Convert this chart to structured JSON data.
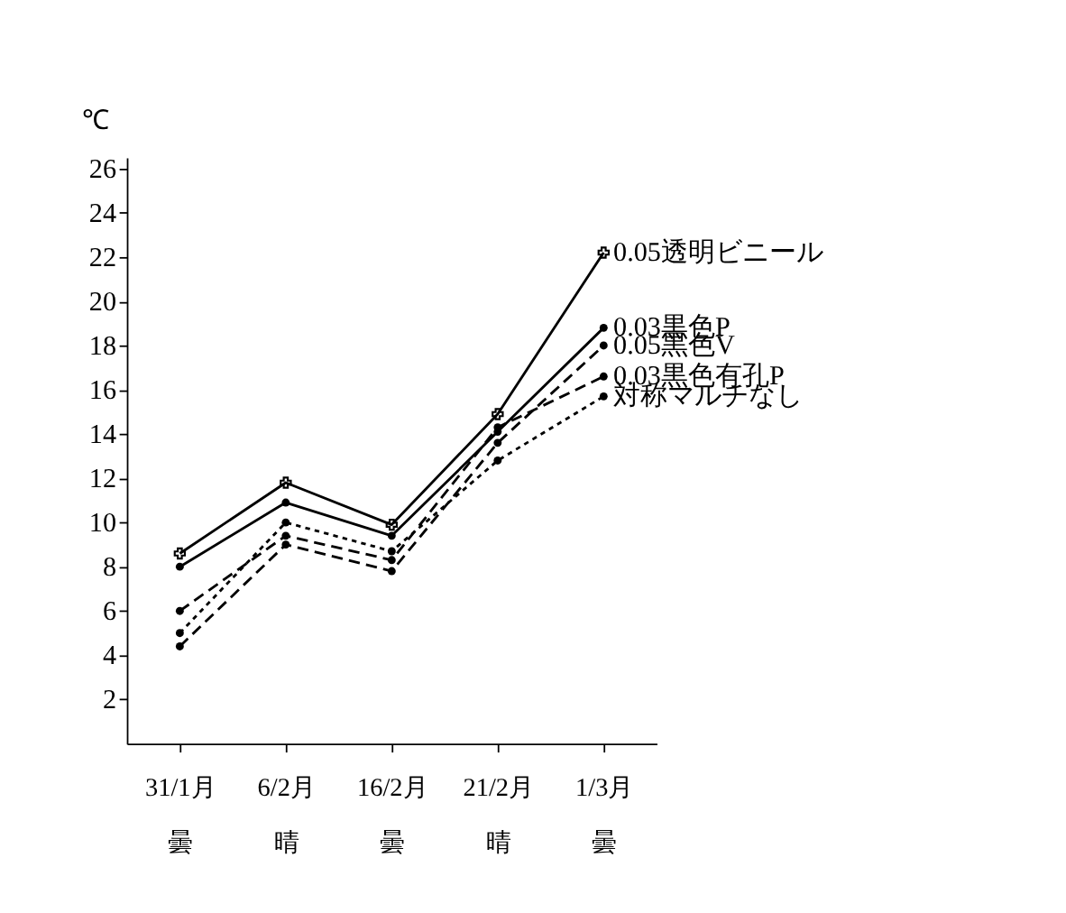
{
  "chart_data": {
    "type": "line",
    "ylabel": "℃",
    "categories": [
      "31/1月曇",
      "6/2月晴",
      "16/2月曇",
      "21/2月晴",
      "1/3月曇"
    ],
    "series": [
      {
        "name": "0.05透明ビニール",
        "color": "#000000",
        "marker": "cross",
        "line_style": "solid",
        "values": [
          8.6,
          11.8,
          9.9,
          14.9,
          22.2
        ]
      },
      {
        "name": "0.03黒色P",
        "color": "#000000",
        "marker": "circle",
        "line_style": "solid",
        "values": [
          8.0,
          10.9,
          9.4,
          14.1,
          18.8
        ]
      },
      {
        "name": "0.05黒色V",
        "color": "#000000",
        "marker": "circle",
        "line_style": "dashed",
        "values": [
          4.4,
          9.0,
          7.8,
          13.6,
          18.0
        ]
      },
      {
        "name": "0.03黒色有孔P",
        "color": "#000000",
        "marker": "circle",
        "line_style": "dashed",
        "values": [
          6.0,
          9.4,
          8.3,
          14.3,
          16.6
        ]
      },
      {
        "name": "対称マルチなし",
        "color": "#000000",
        "marker": "circle",
        "line_style": "dotted",
        "values": [
          5.0,
          10.0,
          8.7,
          12.8,
          15.7
        ]
      }
    ],
    "ylim": [
      0,
      26.5
    ],
    "yticks": [
      2,
      4,
      6,
      8,
      10,
      12,
      14,
      16,
      18,
      20,
      22,
      24,
      26
    ],
    "grid": false
  }
}
